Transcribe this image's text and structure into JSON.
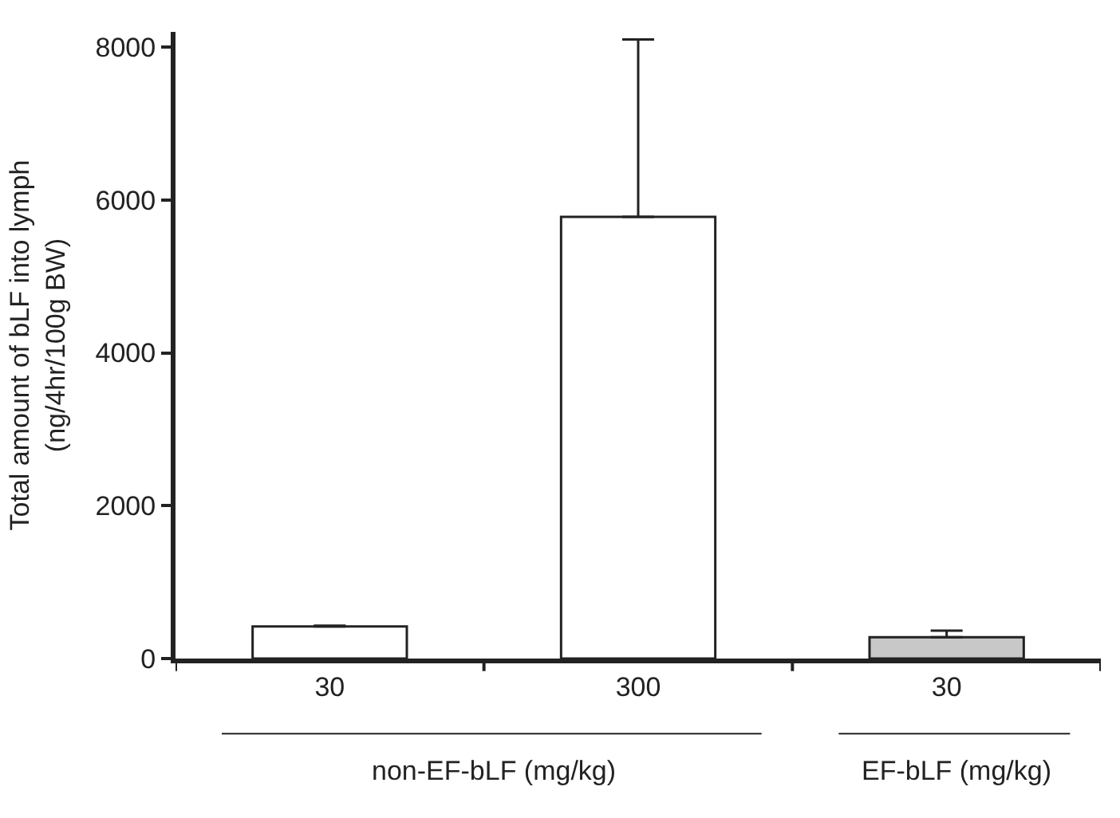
{
  "chart_data": {
    "type": "bar",
    "categories": [
      "30",
      "300",
      "30"
    ],
    "values": [
      420,
      5780,
      280
    ],
    "errors": [
      [
        420,
        430
      ],
      [
        5780,
        8100
      ],
      [
        280,
        365
      ]
    ],
    "colors": [
      "#ffffff",
      "#ffffff",
      "#c8c8c8"
    ],
    "ylabel": "Total amount of bLF into lymph\n(ng/4hr/100g BW)",
    "ylim": [
      0,
      8200
    ],
    "yticks": [
      0,
      2000,
      4000,
      6000,
      8000
    ],
    "annotations": [
      "non-EF-bLF (mg/kg)",
      "EF-bLF (mg/kg)"
    ],
    "legend": false
  }
}
